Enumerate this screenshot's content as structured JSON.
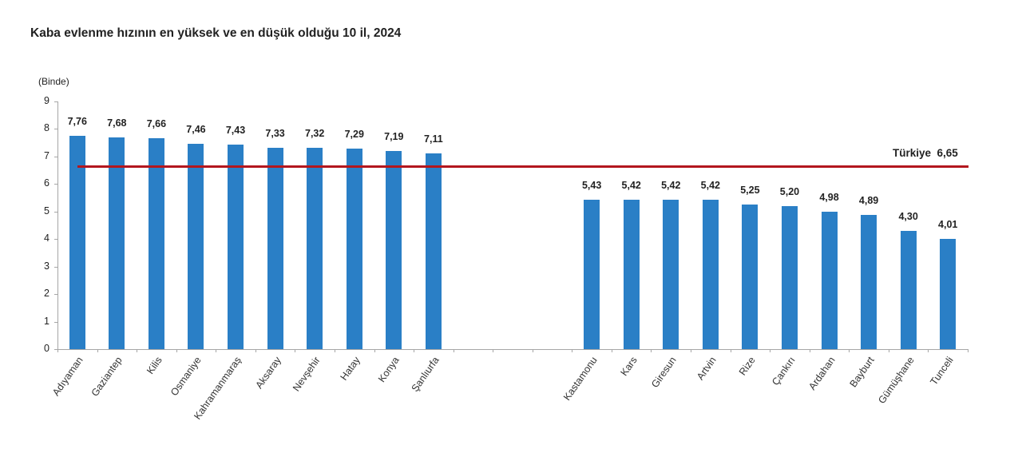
{
  "chart_data": {
    "type": "bar",
    "title": "Kaba evlenme hızının en yüksek ve en düşük olduğu 10 il, 2024",
    "ylabel": "(Binde)",
    "xlabel": "",
    "ylim": [
      0,
      9
    ],
    "yticks": [
      "0",
      "1",
      "2",
      "3",
      "4",
      "5",
      "6",
      "7",
      "8",
      "9"
    ],
    "grid": false,
    "legend": null,
    "categories": [
      "Adıyaman",
      "Gaziantep",
      "Kilis",
      "Osmaniye",
      "Kahramanmaraş",
      "Aksaray",
      "Nevşehir",
      "Hatay",
      "Konya",
      "Şanlıurfa",
      "",
      "",
      "",
      "Kastamonu",
      "Kars",
      "Giresun",
      "Artvin",
      "Rize",
      "Çankırı",
      "Ardahan",
      "Bayburt",
      "Gümüşhane",
      "Tunceli"
    ],
    "values": [
      7.76,
      7.68,
      7.66,
      7.46,
      7.43,
      7.33,
      7.32,
      7.29,
      7.19,
      7.11,
      null,
      null,
      null,
      5.43,
      5.42,
      5.42,
      5.42,
      5.25,
      5.2,
      4.98,
      4.89,
      4.3,
      4.01
    ],
    "value_labels": [
      "7,76",
      "7,68",
      "7,66",
      "7,46",
      "7,43",
      "7,33",
      "7,32",
      "7,29",
      "7,19",
      "7,11",
      "",
      "",
      "",
      "5,43",
      "5,42",
      "5,42",
      "5,42",
      "5,25",
      "5,20",
      "4,98",
      "4,89",
      "4,30",
      "4,01"
    ],
    "series_color": "#2a7fc6",
    "reference_line": {
      "label": "Türkiye  6,65",
      "value": 6.65,
      "color": "#b3171e"
    },
    "annotations": [
      "Türkiye  6,65"
    ]
  }
}
